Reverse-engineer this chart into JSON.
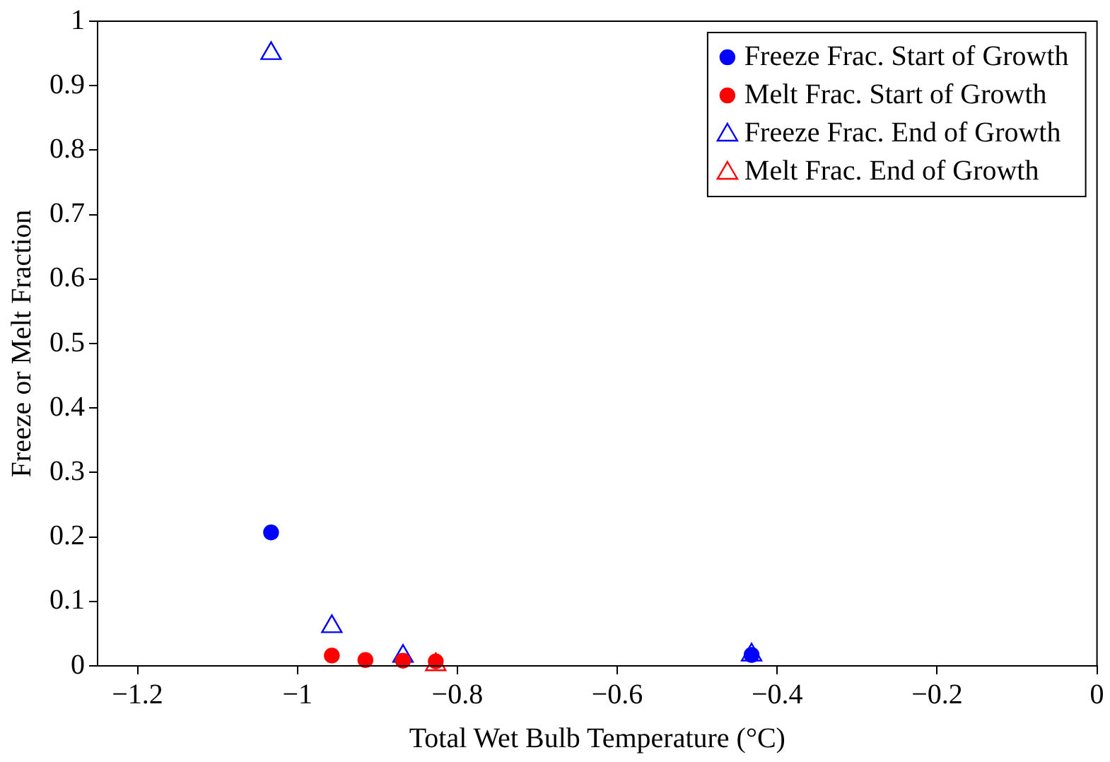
{
  "chart_data": {
    "type": "scatter",
    "xlabel": "Total Wet Bulb Temperature (°C)",
    "ylabel": "Freeze or Melt Fraction",
    "xlim": [
      -1.25,
      0
    ],
    "ylim": [
      0,
      1
    ],
    "xticks": [
      {
        "value": -1.2,
        "label": "−1.2"
      },
      {
        "value": -1,
        "label": "−1"
      },
      {
        "value": -0.8,
        "label": "−0.8"
      },
      {
        "value": -0.6,
        "label": "−0.6"
      },
      {
        "value": -0.4,
        "label": "−0.4"
      },
      {
        "value": -0.2,
        "label": "−0.2"
      },
      0
    ],
    "yticks": [
      0,
      0.1,
      0.2,
      0.3,
      0.4,
      0.5,
      0.6,
      0.7,
      0.8,
      0.9,
      1
    ],
    "grid": false,
    "legend": "top right",
    "series": [
      {
        "name": "Freeze Frac. Start of Growth",
        "color": "#0000ff",
        "marker": "circle",
        "x": [
          -1.033,
          -0.432
        ],
        "values": [
          0.207,
          0.017
        ]
      },
      {
        "name": "Melt Frac. Start of Growth",
        "color": "#ff0000",
        "marker": "circle",
        "x": [
          -0.957,
          -0.915,
          -0.868,
          -0.827
        ],
        "values": [
          0.016,
          0.009,
          0.008,
          0.007
        ]
      },
      {
        "name": "Freeze Frac. End of Growth",
        "color": "#0000ff",
        "marker": "triangle",
        "x": [
          -1.033,
          -0.957,
          -0.868,
          -0.432
        ],
        "values": [
          0.95,
          0.061,
          0.015,
          0.017
        ]
      },
      {
        "name": "Melt Frac. End of Growth",
        "color": "#ff0000",
        "marker": "triangle",
        "x": [
          -0.827
        ],
        "values": [
          0.002
        ]
      }
    ]
  }
}
